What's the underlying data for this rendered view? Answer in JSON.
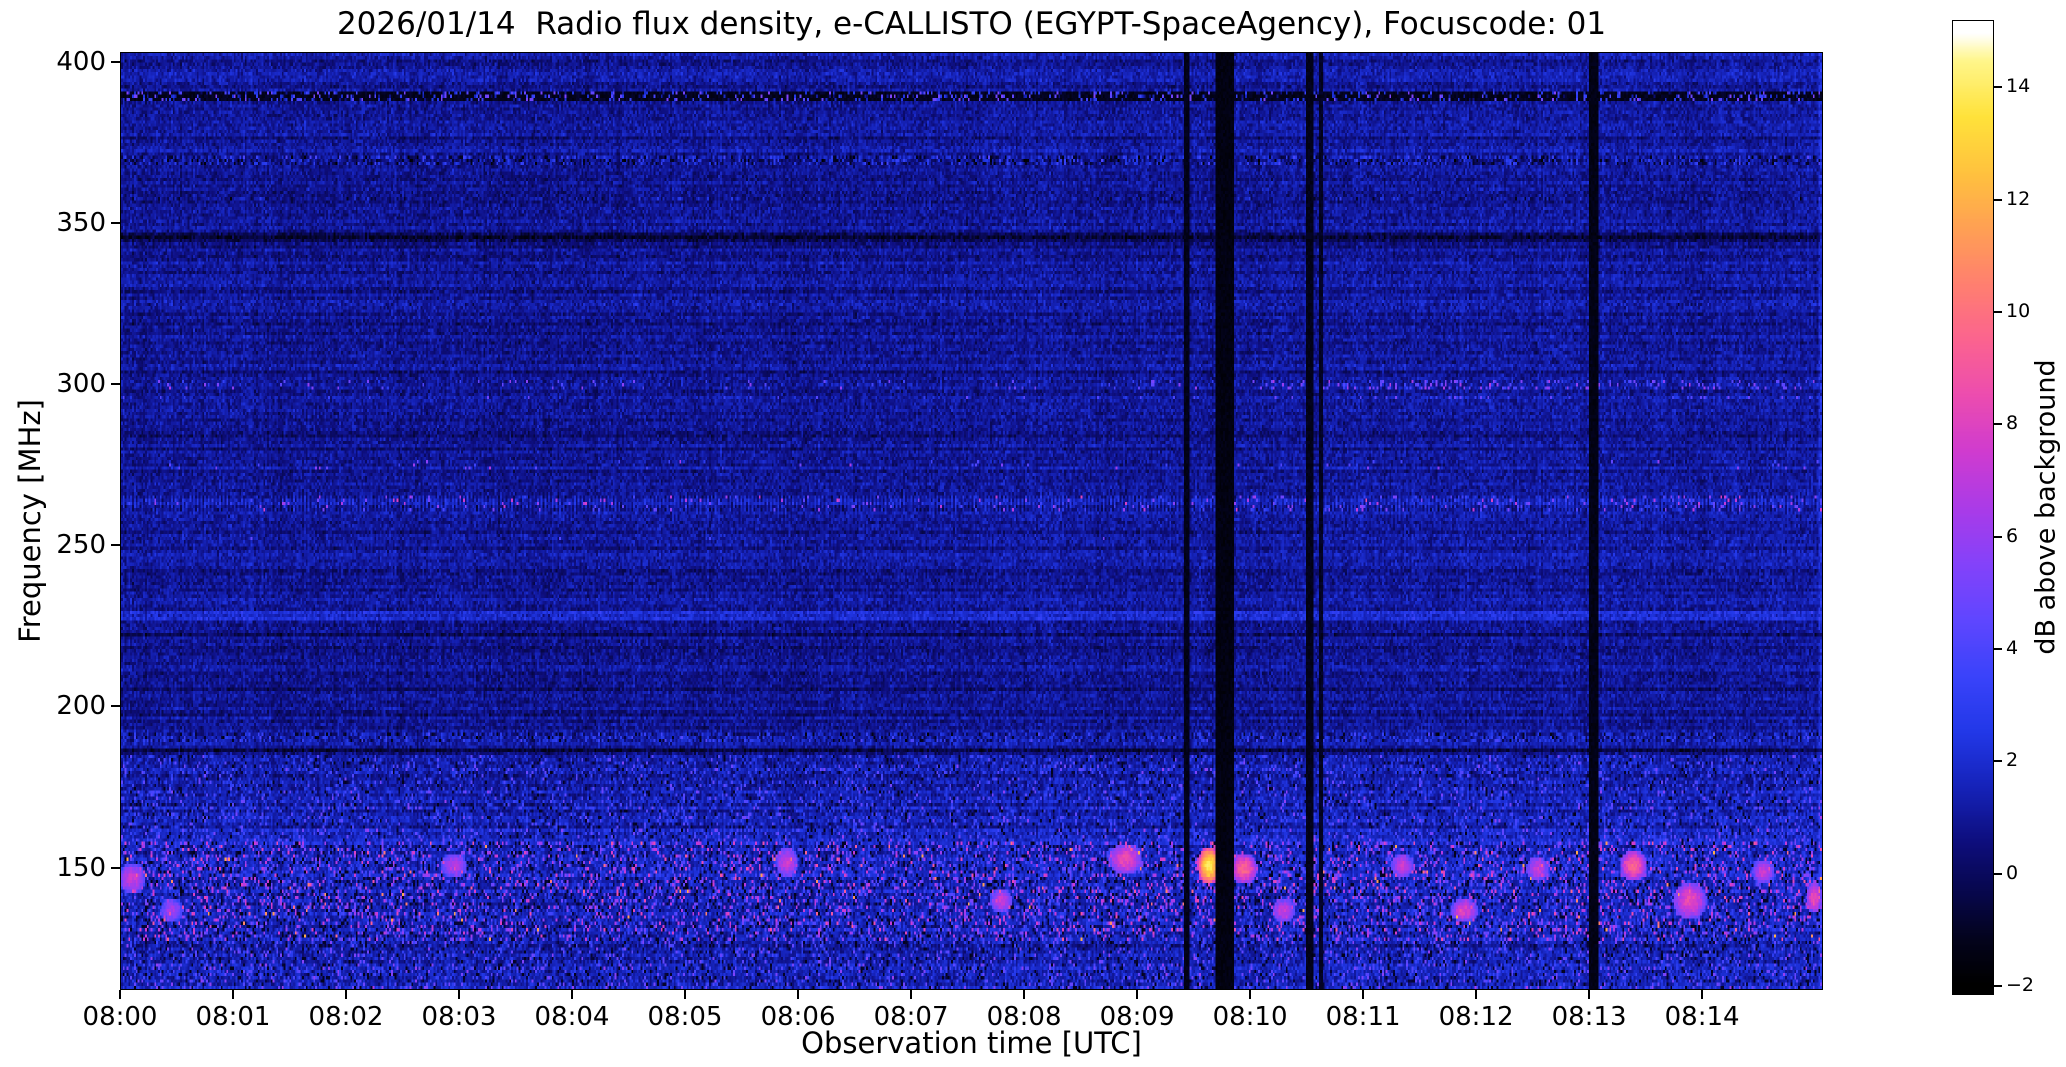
{
  "chart_data": {
    "type": "heatmap",
    "title": "2026/01/14  Radio flux density, e-CALLISTO (EGYPT-SpaceAgency), Focuscode: 01",
    "xlabel": "Observation time [UTC]",
    "ylabel": "Frequency [MHz]",
    "colorbar_label": "dB above background",
    "x_axis": {
      "start_minutes": 0,
      "end_minutes": 15.07,
      "ticks": [
        {
          "m": 0,
          "label": "08:00"
        },
        {
          "m": 1,
          "label": "08:01"
        },
        {
          "m": 2,
          "label": "08:02"
        },
        {
          "m": 3,
          "label": "08:03"
        },
        {
          "m": 4,
          "label": "08:04"
        },
        {
          "m": 5,
          "label": "08:05"
        },
        {
          "m": 6,
          "label": "08:06"
        },
        {
          "m": 7,
          "label": "08:07"
        },
        {
          "m": 8,
          "label": "08:08"
        },
        {
          "m": 9,
          "label": "08:09"
        },
        {
          "m": 10,
          "label": "08:10"
        },
        {
          "m": 11,
          "label": "08:11"
        },
        {
          "m": 12,
          "label": "08:12"
        },
        {
          "m": 13,
          "label": "08:13"
        },
        {
          "m": 14,
          "label": "08:14"
        }
      ]
    },
    "y_axis": {
      "top_mhz": 403,
      "bottom_mhz": 112,
      "ticks": [
        {
          "mhz": 400,
          "label": "400"
        },
        {
          "mhz": 350,
          "label": "350"
        },
        {
          "mhz": 300,
          "label": "300"
        },
        {
          "mhz": 250,
          "label": "250"
        },
        {
          "mhz": 200,
          "label": "200"
        },
        {
          "mhz": 150,
          "label": "150"
        }
      ]
    },
    "colorbar": {
      "axis_min": -2.16,
      "axis_max": 15.2,
      "data_min": -2,
      "data_max": 15,
      "ticks": [
        {
          "v": 14,
          "label": "14"
        },
        {
          "v": 12,
          "label": "12"
        },
        {
          "v": 10,
          "label": "10"
        },
        {
          "v": 8,
          "label": "8"
        },
        {
          "v": 6,
          "label": "6"
        },
        {
          "v": 4,
          "label": "4"
        },
        {
          "v": 2,
          "label": "2"
        },
        {
          "v": 0,
          "label": "0"
        },
        {
          "v": -2,
          "label": "−2"
        }
      ]
    },
    "colormap_stops": [
      [
        -2,
        "#000000"
      ],
      [
        -1.2,
        "#03031c"
      ],
      [
        -0.4,
        "#07074a"
      ],
      [
        0.5,
        "#0d0d7a"
      ],
      [
        1.5,
        "#1522b8"
      ],
      [
        2.5,
        "#2238e8"
      ],
      [
        3.5,
        "#3a43fa"
      ],
      [
        4.5,
        "#5f46ff"
      ],
      [
        5.5,
        "#8442fa"
      ],
      [
        6.5,
        "#aa3be8"
      ],
      [
        7.5,
        "#cf3bd0"
      ],
      [
        8.5,
        "#ec4cb0"
      ],
      [
        9.5,
        "#fb6390"
      ],
      [
        10.5,
        "#ff7f70"
      ],
      [
        11.5,
        "#ffa054"
      ],
      [
        12.5,
        "#ffc23e"
      ],
      [
        13.5,
        "#ffe23a"
      ],
      [
        14.5,
        "#fff68a"
      ],
      [
        15,
        "#ffffff"
      ]
    ],
    "seed": 20260114,
    "noise": {
      "base_mean": 0.85,
      "base_sigma": 0.5,
      "row_sigma": 0.28,
      "col_sigma": 0.13,
      "late_boost_after_minutes": 10.2,
      "late_boost": 0.18,
      "right_edge_boost": 1.2
    },
    "bands": [
      {
        "f_min": 158,
        "f_max": 184,
        "extra_mean": 0.35,
        "speckle_prob": 0.22,
        "speckle_max": 3.5,
        "dark_prob": 0.05
      },
      {
        "f_min": 127,
        "f_max": 158,
        "extra_mean": 0.55,
        "speckle_prob": 0.3,
        "speckle_max": 6.5,
        "dark_prob": 0.1,
        "hot_prob": 0.012,
        "hot_max": 12
      },
      {
        "f_min": 112,
        "f_max": 127,
        "extra_mean": 0.35,
        "speckle_prob": 0.25,
        "speckle_max": 4.0,
        "dark_prob": 0.08
      }
    ],
    "interference_lines": [
      {
        "f": 390,
        "width": 3,
        "mode": "dark_flicker",
        "dark": -1.6,
        "bright_prob": 0.22,
        "bright_max": 5.5
      },
      {
        "f": 370,
        "width": 2,
        "mode": "speckle",
        "prob": 0.55,
        "amp": 2.4
      },
      {
        "f": 358,
        "width": 1,
        "mode": "speckle",
        "prob": 0.2,
        "amp": 1.8
      },
      {
        "f": 346,
        "width": 2,
        "mode": "dark",
        "offset": -1.1
      },
      {
        "f": 325,
        "width": 1,
        "mode": "speckle",
        "prob": 0.3,
        "amp": 1.3
      },
      {
        "f": 300,
        "width": 2,
        "mode": "patches",
        "prob": 0.05,
        "amp": 4.2,
        "late_after": 10,
        "late_prob": 0.2
      },
      {
        "f": 296,
        "width": 1,
        "mode": "patches",
        "prob": 0.04,
        "amp": 3.0,
        "late_after": 10,
        "late_prob": 0.12
      },
      {
        "f": 275,
        "width": 2,
        "mode": "patches",
        "prob": 0.02,
        "amp": 4.5
      },
      {
        "f": 263,
        "width": 4,
        "mode": "ripple",
        "spike_prob": 0.06,
        "spike_max": 6.0,
        "late_after": 9.5,
        "late_spike_prob": 0.16
      },
      {
        "f": 252,
        "width": 1,
        "mode": "patches",
        "prob": 0.012,
        "amp": 3.2
      },
      {
        "f": 228,
        "width": 2,
        "mode": "bright",
        "offset": 1.2
      },
      {
        "f": 222,
        "width": 1,
        "mode": "dark",
        "offset": -0.7
      },
      {
        "f": 205,
        "width": 1,
        "mode": "dark",
        "offset": -0.8
      },
      {
        "f": 190,
        "width": 2,
        "mode": "speckle",
        "prob": 0.5,
        "amp": 2.2
      },
      {
        "f": 186,
        "width": 1,
        "mode": "dark",
        "offset": -1.0
      }
    ],
    "dropouts": [
      {
        "t0": 9.42,
        "t1": 9.47,
        "level": -1.6
      },
      {
        "t0": 9.7,
        "t1": 9.86,
        "level": -1.8
      },
      {
        "t0": 10.5,
        "t1": 10.56,
        "level": -1.6
      },
      {
        "t0": 10.62,
        "t1": 10.65,
        "level": -1.4
      },
      {
        "t0": 13.0,
        "t1": 13.08,
        "level": -1.7
      }
    ],
    "hotspots": [
      {
        "t": 0.1,
        "f": 146,
        "dt": 0.12,
        "df": 5,
        "v": 8
      },
      {
        "t": 0.45,
        "f": 136,
        "dt": 0.1,
        "df": 4,
        "v": 7
      },
      {
        "t": 2.95,
        "f": 150,
        "dt": 0.12,
        "df": 4,
        "v": 7.5
      },
      {
        "t": 5.9,
        "f": 151,
        "dt": 0.1,
        "df": 5,
        "v": 8
      },
      {
        "t": 7.8,
        "f": 139,
        "dt": 0.1,
        "df": 4,
        "v": 8
      },
      {
        "t": 8.9,
        "f": 152,
        "dt": 0.15,
        "df": 5,
        "v": 9
      },
      {
        "t": 9.64,
        "f": 150,
        "dt": 0.1,
        "df": 6,
        "v": 14.5
      },
      {
        "t": 9.95,
        "f": 149,
        "dt": 0.12,
        "df": 5,
        "v": 10
      },
      {
        "t": 10.3,
        "f": 136,
        "dt": 0.1,
        "df": 4,
        "v": 8
      },
      {
        "t": 11.35,
        "f": 150,
        "dt": 0.1,
        "df": 4,
        "v": 8
      },
      {
        "t": 11.9,
        "f": 136,
        "dt": 0.12,
        "df": 4,
        "v": 8.5
      },
      {
        "t": 12.55,
        "f": 149,
        "dt": 0.1,
        "df": 4,
        "v": 8
      },
      {
        "t": 13.4,
        "f": 150,
        "dt": 0.12,
        "df": 5,
        "v": 10
      },
      {
        "t": 13.9,
        "f": 139,
        "dt": 0.15,
        "df": 6,
        "v": 9
      },
      {
        "t": 14.55,
        "f": 148,
        "dt": 0.1,
        "df": 4,
        "v": 8
      },
      {
        "t": 15.0,
        "f": 140,
        "dt": 0.07,
        "df": 5,
        "v": 9
      }
    ]
  }
}
